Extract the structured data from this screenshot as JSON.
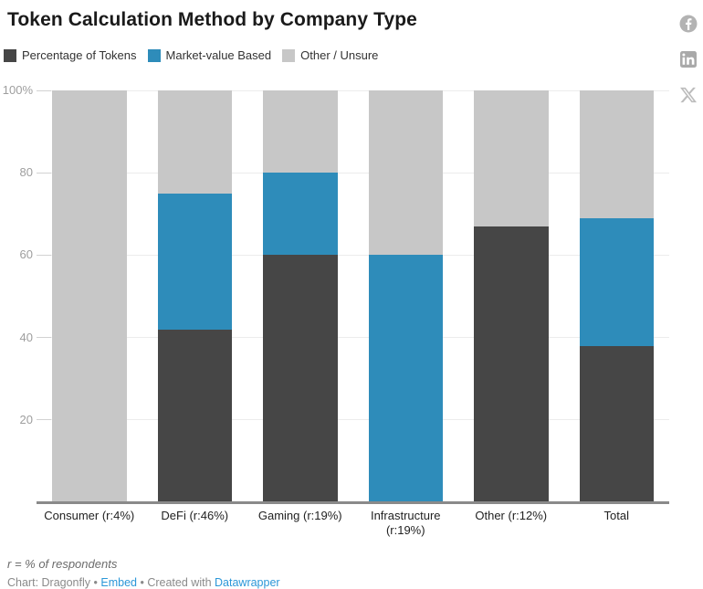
{
  "title": "Token Calculation Method by Company Type",
  "legend": {
    "items": [
      {
        "label": "Percentage of Tokens",
        "color": "#464646"
      },
      {
        "label": "Market-value Based",
        "color": "#2e8cba"
      },
      {
        "label": "Other / Unsure",
        "color": "#c7c7c7"
      }
    ]
  },
  "social": {
    "facebook": "facebook-share-icon",
    "linkedin": "linkedin-share-icon",
    "x": "x-share-icon",
    "icon_color": "#b3b3b3"
  },
  "chart_data": {
    "type": "bar",
    "stacked": true,
    "title": "Token Calculation Method by Company Type",
    "categories": [
      "Consumer (r:4%)",
      "DeFi (r:46%)",
      "Gaming (r:19%)",
      "Infrastructure (r:19%)",
      "Other (r:12%)",
      "Total"
    ],
    "series": [
      {
        "name": "Percentage of Tokens",
        "color": "#464646",
        "values": [
          0,
          42,
          60,
          0,
          67,
          38
        ]
      },
      {
        "name": "Market-value Based",
        "color": "#2e8cba",
        "values": [
          0,
          33,
          20,
          60,
          0,
          31
        ]
      },
      {
        "name": "Other / Unsure",
        "color": "#c7c7c7",
        "values": [
          100,
          25,
          20,
          40,
          33,
          31
        ]
      }
    ],
    "xlabel": "",
    "ylabel": "",
    "ylim": [
      0,
      100
    ],
    "y_ticks": [
      {
        "value": 100,
        "label": "100%"
      },
      {
        "value": 80,
        "label": "80"
      },
      {
        "value": 60,
        "label": "60"
      },
      {
        "value": 40,
        "label": "40"
      },
      {
        "value": 20,
        "label": "20"
      }
    ],
    "grid": true,
    "legend_position": "top"
  },
  "footer": {
    "note": "r = % of respondents",
    "chart_credit": "Chart: Dragonfly",
    "separator": "•",
    "embed_link": "Embed",
    "created_with": "Created with",
    "datawrapper_link": "Datawrapper"
  }
}
